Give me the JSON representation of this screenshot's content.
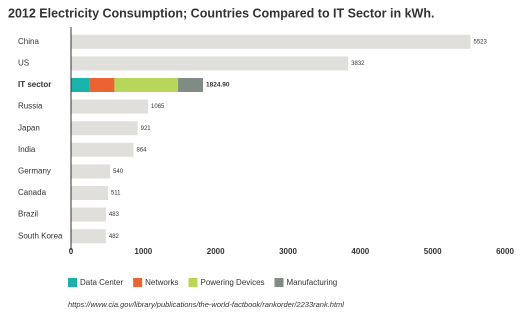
{
  "chart_data": {
    "type": "hbar",
    "title": "2012 Electricity Consumption; Countries Compared to IT Sector in kWh.",
    "categories": [
      "China",
      "US",
      "IT sector",
      "Russia",
      "Japan",
      "India",
      "Germany",
      "Canada",
      "Brazil",
      "South Korea"
    ],
    "values": [
      5523,
      3832,
      1824.9,
      1065,
      921,
      864,
      540,
      511,
      483,
      482
    ],
    "value_labels": [
      "5523",
      "3832",
      "1824.90",
      "1065",
      "921",
      "864",
      "540",
      "511",
      "483",
      "482"
    ],
    "color": "#e0dfdb",
    "series": [
      {
        "name": "Data Center",
        "color": "#1ab3ac",
        "values": [
          null,
          null,
          260,
          null,
          null,
          null,
          null,
          null,
          null,
          null
        ]
      },
      {
        "name": "Networks",
        "color": "#ea6330",
        "values": [
          null,
          null,
          340,
          null,
          null,
          null,
          null,
          null,
          null,
          null
        ]
      },
      {
        "name": "Powering Devices",
        "color": "#b7d65a",
        "values": [
          null,
          null,
          880,
          null,
          null,
          null,
          null,
          null,
          null,
          null
        ]
      },
      {
        "name": "Manufacturing",
        "color": "#7f8c84",
        "values": [
          null,
          null,
          345,
          null,
          null,
          null,
          null,
          null,
          null,
          null
        ]
      }
    ],
    "xlim": [
      0,
      6000
    ],
    "xticks": [
      0,
      1000,
      2000,
      3000,
      4000,
      5000,
      6000
    ],
    "grid": false,
    "source": "https://www.cia.gov/library/publications/the-world-factbook/rankorder/2233rank.html"
  }
}
